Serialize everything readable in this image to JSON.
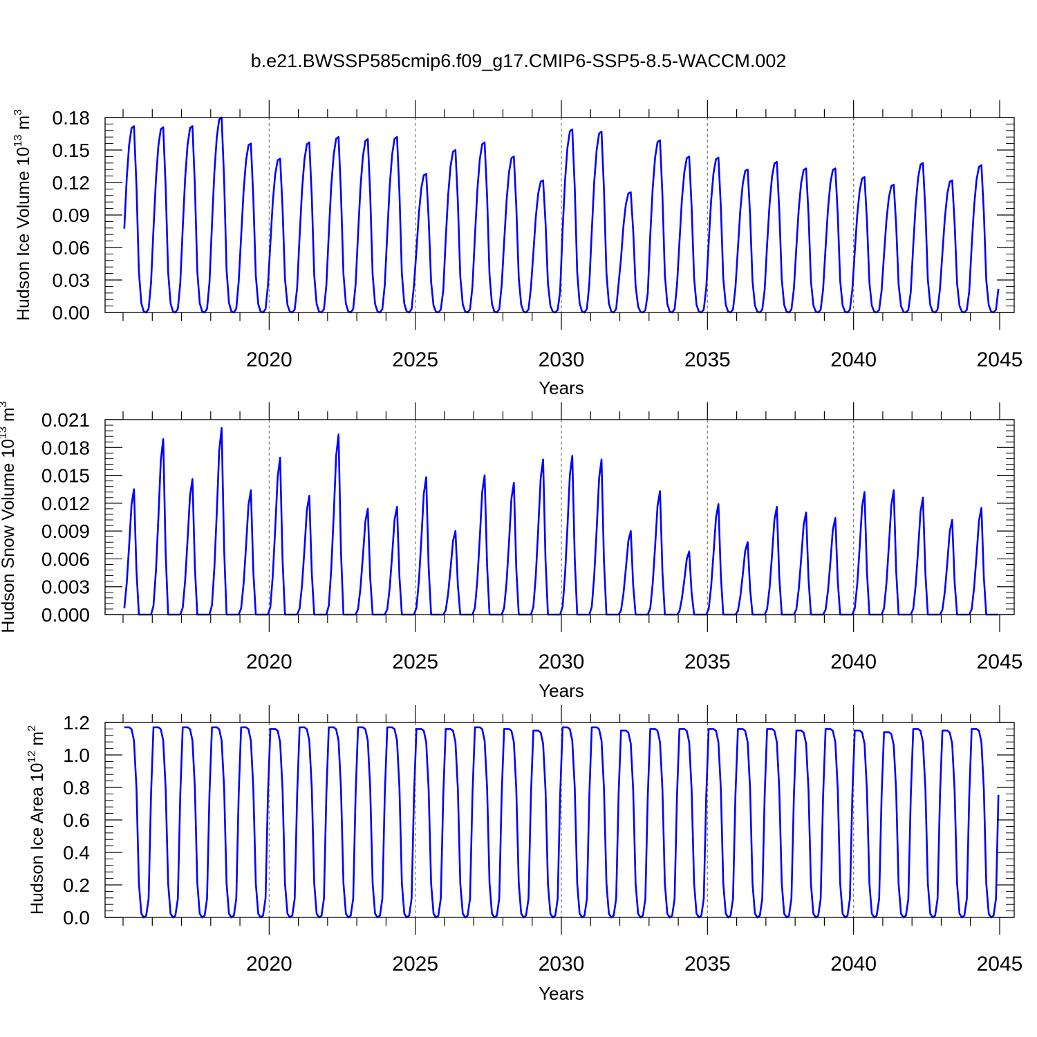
{
  "title": "b.e21.BWSSP585cmip6.f09_g17.CMIP6-SSP5-8.5-WACCM.002",
  "colors": {
    "series": "#0000ff",
    "axes": "#000000",
    "grid": "#777777"
  },
  "chart_data": [
    {
      "type": "line",
      "ylabel": {
        "text": "Hudson Ice Volume 10",
        "exponent": "13",
        "unit": "m",
        "unit_exponent": "3"
      },
      "xlabel": "Years",
      "xlim": [
        2015,
        2045
      ],
      "ylim": [
        0,
        0.18
      ],
      "yticks": [
        "0.00",
        "0.03",
        "0.06",
        "0.09",
        "0.12",
        "0.15",
        "0.18"
      ],
      "xticks": [
        "2020",
        "2025",
        "2030",
        "2035",
        "2040",
        "2045"
      ],
      "grid": "vertical dashed at 2020, 2025, 2030, 2035, 2040",
      "peaks": [
        0.172,
        0.171,
        0.172,
        0.18,
        0.156,
        0.142,
        0.157,
        0.162,
        0.16,
        0.162,
        0.128,
        0.15,
        0.157,
        0.144,
        0.122,
        0.169,
        0.167,
        0.111,
        0.159,
        0.144,
        0.143,
        0.132,
        0.139,
        0.133,
        0.133,
        0.125,
        0.118,
        0.138,
        0.122,
        0.136
      ],
      "monthly_shape": [
        0.45,
        0.72,
        0.9,
        0.99,
        1.0,
        0.68,
        0.22,
        0.05,
        0.005,
        0.0,
        0.02,
        0.16
      ],
      "series": [
        {
          "values": []
        }
      ]
    },
    {
      "type": "line",
      "ylabel": {
        "text": "Hudson Snow Volume 10",
        "exponent": "13",
        "unit": "m",
        "unit_exponent": "3"
      },
      "xlabel": "Years",
      "xlim": [
        2015,
        2045
      ],
      "ylim": [
        0,
        0.021
      ],
      "yticks": [
        "0.000",
        "0.003",
        "0.006",
        "0.009",
        "0.012",
        "0.015",
        "0.018",
        "0.021"
      ],
      "xticks": [
        "2020",
        "2025",
        "2030",
        "2035",
        "2040",
        "2045"
      ],
      "grid": "vertical dashed at 2020, 2025, 2030, 2035, 2040",
      "peaks": [
        0.0135,
        0.0189,
        0.0146,
        0.0201,
        0.0134,
        0.0169,
        0.0128,
        0.0194,
        0.0114,
        0.0116,
        0.0148,
        0.009,
        0.015,
        0.0142,
        0.0167,
        0.0171,
        0.0167,
        0.009,
        0.0133,
        0.0068,
        0.0119,
        0.0078,
        0.0116,
        0.011,
        0.0104,
        0.0132,
        0.0134,
        0.0126,
        0.0102,
        0.0115
      ],
      "monthly_shape": [
        0.05,
        0.25,
        0.55,
        0.88,
        1.0,
        0.35,
        0.0,
        0.0,
        0.0,
        0.0,
        0.0,
        0.0
      ],
      "series": [
        {
          "values": []
        }
      ]
    },
    {
      "type": "line",
      "ylabel": {
        "text": "Hudson Ice Area 10",
        "exponent": "12",
        "unit": "m",
        "unit_exponent": "2"
      },
      "xlabel": "Years",
      "xlim": [
        2015,
        2045
      ],
      "ylim": [
        0,
        1.2
      ],
      "yticks": [
        "0.0",
        "0.2",
        "0.4",
        "0.6",
        "0.8",
        "1.0",
        "1.2"
      ],
      "xticks": [
        "2020",
        "2025",
        "2030",
        "2035",
        "2040",
        "2045"
      ],
      "grid": "vertical dashed at 2020, 2025, 2030, 2035, 2040",
      "peaks": [
        1.17,
        1.17,
        1.17,
        1.17,
        1.17,
        1.16,
        1.17,
        1.17,
        1.17,
        1.17,
        1.16,
        1.16,
        1.17,
        1.16,
        1.15,
        1.17,
        1.17,
        1.15,
        1.16,
        1.16,
        1.16,
        1.16,
        1.16,
        1.15,
        1.16,
        1.15,
        1.14,
        1.16,
        1.15,
        1.16
      ],
      "monthly_shape": [
        1.0,
        1.0,
        1.0,
        0.99,
        0.93,
        0.68,
        0.18,
        0.02,
        0.0,
        0.01,
        0.1,
        0.65
      ],
      "series": [
        {
          "values": []
        }
      ]
    }
  ]
}
